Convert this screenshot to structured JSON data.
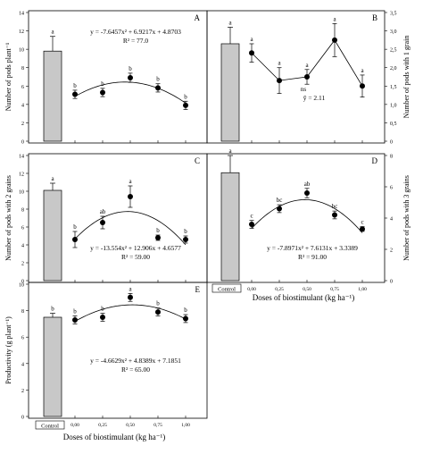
{
  "figure": {
    "x_axis_title": "Doses of biostimulant (kg ha⁻¹)",
    "control_label": "Control"
  },
  "chart_data": [
    {
      "panel": "A",
      "type": "bar+scatter",
      "ylabel": "Number of pods plant⁻¹",
      "ylim": [
        0,
        14
      ],
      "yticks": [
        0,
        2,
        4,
        6,
        8,
        10,
        12,
        14
      ],
      "y_axis_side": "left",
      "control": {
        "value": 9.8,
        "error": 1.6,
        "letter": "a"
      },
      "x": [
        0,
        0.25,
        0.5,
        0.75,
        1.0
      ],
      "values": [
        5.1,
        5.3,
        6.9,
        5.8,
        3.9
      ],
      "errors": [
        0.45,
        0.45,
        0.5,
        0.45,
        0.45
      ],
      "letters": [
        "b",
        "b",
        "b",
        "b",
        "b"
      ],
      "fit": {
        "a": -7.6457,
        "b": 6.9217,
        "c": 4.8703
      },
      "equation": "y = -7.6457x² + 6.9217x + 4.8703",
      "r2": "R² = 77.0"
    },
    {
      "panel": "B",
      "type": "bar+line",
      "ylabel": "Number of pods with 1 grain",
      "ylim": [
        0,
        3.5
      ],
      "yticks": [
        0,
        0.5,
        1.0,
        1.5,
        2.0,
        2.5,
        3.0,
        3.5
      ],
      "ytick_labels": [
        "0",
        "0,5",
        "1,0",
        "1,5",
        "2,0",
        "2,5",
        "3,0",
        "3,5"
      ],
      "y_axis_side": "right",
      "control": {
        "value": 2.65,
        "error": 0.45,
        "letter": "a"
      },
      "x": [
        0,
        0.25,
        0.5,
        0.75,
        1.0
      ],
      "values": [
        2.4,
        1.65,
        1.75,
        2.75,
        1.5
      ],
      "errors": [
        0.25,
        0.35,
        0.2,
        0.45,
        0.3
      ],
      "letters": [
        "a",
        "a",
        "a",
        "a",
        "a"
      ],
      "ns": "ns",
      "mean": "ȳ = 2.11"
    },
    {
      "panel": "C",
      "type": "bar+scatter",
      "ylabel": "Number of pods with 2 grains",
      "ylim": [
        0,
        14
      ],
      "yticks": [
        0,
        2,
        4,
        6,
        8,
        10,
        12,
        14
      ],
      "y_axis_side": "left",
      "control": {
        "value": 10.1,
        "error": 0.8,
        "letter": "a"
      },
      "x": [
        0,
        0.25,
        0.5,
        0.75,
        1.0
      ],
      "values": [
        4.6,
        6.5,
        9.4,
        4.8,
        4.6
      ],
      "errors": [
        0.9,
        0.7,
        1.2,
        0.3,
        0.4
      ],
      "letters": [
        "b",
        "ab",
        "a",
        "b",
        "b"
      ],
      "fit": {
        "a": -13.554,
        "b": 12.906,
        "c": 4.6577
      },
      "equation": "y = -13.554x² + 12.906x + 4.6577",
      "r2": "R² = 59.00"
    },
    {
      "panel": "D",
      "type": "bar+scatter",
      "ylabel": "Number of pods with 3 grains",
      "ylim": [
        0,
        8
      ],
      "yticks": [
        0,
        2,
        4,
        6,
        8
      ],
      "y_axis_side": "right",
      "control": {
        "value": 6.9,
        "error": 1.1,
        "letter": "a"
      },
      "x": [
        0,
        0.25,
        0.5,
        0.75,
        1.0
      ],
      "x_tick_labels": [
        "0,00",
        "0,25",
        "0,50",
        "0,75",
        "1,00"
      ],
      "values": [
        3.6,
        4.6,
        5.6,
        4.2,
        3.3
      ],
      "errors": [
        0.25,
        0.25,
        0.3,
        0.25,
        0.15
      ],
      "letters": [
        "c",
        "bc",
        "ab",
        "bc",
        "c"
      ],
      "fit": {
        "a": -7.8971,
        "b": 7.6131,
        "c": 3.3389
      },
      "equation": "y = -7.8971x² + 7.6131x + 3.3389",
      "r2": "R² = 91.00"
    },
    {
      "panel": "E",
      "type": "bar+scatter",
      "ylabel": "Productivity (g plant⁻¹)",
      "ylim": [
        0,
        10
      ],
      "yticks": [
        0,
        2,
        4,
        6,
        8,
        10
      ],
      "y_axis_side": "left",
      "control": {
        "value": 7.5,
        "error": 0.3,
        "letter": "b"
      },
      "x": [
        0,
        0.25,
        0.5,
        0.75,
        1.0
      ],
      "x_tick_labels": [
        "0,00",
        "0,25",
        "0,50",
        "0,75",
        "1,00"
      ],
      "values": [
        7.3,
        7.5,
        9.0,
        7.9,
        7.4
      ],
      "errors": [
        0.3,
        0.3,
        0.3,
        0.3,
        0.3
      ],
      "letters": [
        "b",
        "b",
        "a",
        "b",
        "b"
      ],
      "fit": {
        "a": -4.6629,
        "b": 4.8389,
        "c": 7.1851
      },
      "equation": "y = -4.6629x² + 4.8389x + 7.1851",
      "r2": "R² = 65.00"
    }
  ]
}
